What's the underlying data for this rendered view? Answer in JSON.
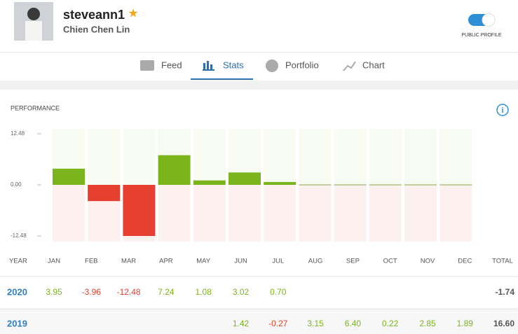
{
  "header": {
    "username": "steveann1",
    "full_name": "Chien Chen Lin",
    "public_profile": "PUBLIC PROFILE"
  },
  "tabs": [
    "Feed",
    "Stats",
    "Portfolio",
    "Chart"
  ],
  "performance": {
    "title": "PERFORMANCE",
    "ylim": [
      -12.48,
      12.48
    ],
    "yticks": [
      12.48,
      {
        "value": 0,
        "label": "0.00"
      },
      -12.48
    ],
    "positive_color": "#7ab51d",
    "negative_color": "#e5402f"
  },
  "table": {
    "columns": [
      "YEAR",
      "JAN",
      "FEB",
      "MAR",
      "APR",
      "MAY",
      "JUN",
      "JUL",
      "AUG",
      "SEP",
      "OCT",
      "NOV",
      "DEC",
      "TOTAL"
    ],
    "rows": [
      {
        "year": "2020",
        "values": [
          3.95,
          -3.96,
          -12.48,
          7.24,
          1.08,
          3.02,
          0.7,
          null,
          null,
          null,
          null,
          null
        ],
        "value_labels": [
          "3.95",
          "-3.96",
          "-12.48",
          "7.24",
          "1.08",
          "3.02",
          "0.70",
          null,
          null,
          null,
          null,
          null
        ],
        "total": -1.74,
        "total_label": "-1.74"
      },
      {
        "year": "2019",
        "values": [
          null,
          null,
          null,
          null,
          null,
          1.42,
          -0.27,
          3.15,
          6.4,
          0.22,
          2.85,
          1.89
        ],
        "value_labels": [
          null,
          null,
          null,
          null,
          null,
          "1.42",
          "-0.27",
          "3.15",
          "6.40",
          "0.22",
          "2.85",
          "1.89"
        ],
        "total": 16.6,
        "total_label": "16.60"
      }
    ]
  }
}
